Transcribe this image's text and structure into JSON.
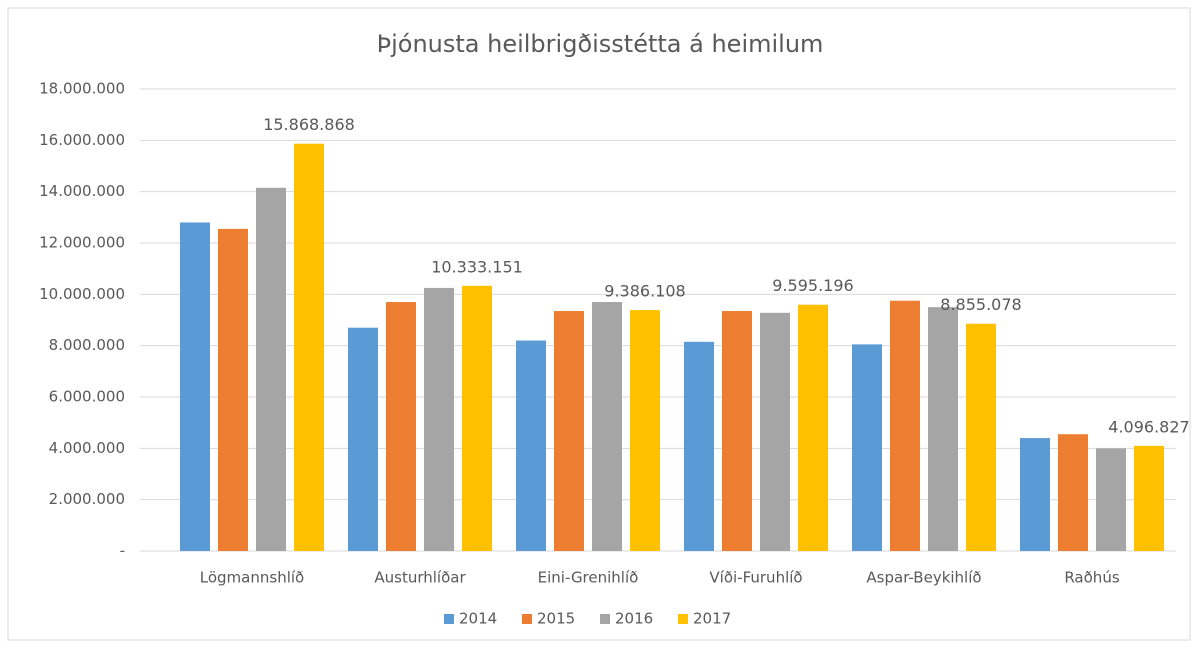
{
  "chart_data": {
    "type": "bar",
    "title": "Þjónusta heilbrigðisstétta á heimilum",
    "categories": [
      "Lögmannshlíð",
      "Austurhlíðar",
      "Eini-Grenihlíð",
      "Víði-Furuhlíð",
      "Aspar-Beykihlíð",
      "Raðhús"
    ],
    "series": [
      {
        "name": "2014",
        "color": "#5b9bd5",
        "values": [
          12800000,
          8700000,
          8200000,
          8150000,
          8050000,
          4400000
        ]
      },
      {
        "name": "2015",
        "color": "#ed7d31",
        "values": [
          12550000,
          9700000,
          9350000,
          9350000,
          9750000,
          4550000
        ]
      },
      {
        "name": "2016",
        "color": "#a5a5a5",
        "values": [
          14150000,
          10250000,
          9700000,
          9280000,
          9500000,
          4000000
        ]
      },
      {
        "name": "2017",
        "color": "#ffc000",
        "values": [
          15868868,
          10333151,
          9386108,
          9595196,
          8855078,
          4096827
        ],
        "value_labels": [
          "15.868.868",
          "10.333.151",
          "9.386.108",
          "9.595.196",
          "8.855.078",
          "4.096.827"
        ]
      }
    ],
    "ylim": [
      0,
      18000000
    ],
    "yticks": [
      {
        "value": 0,
        "label": "-"
      },
      {
        "value": 2000000,
        "label": "2.000.000"
      },
      {
        "value": 4000000,
        "label": "4.000.000"
      },
      {
        "value": 6000000,
        "label": "6.000.000"
      },
      {
        "value": 8000000,
        "label": "8.000.000"
      },
      {
        "value": 10000000,
        "label": "10.000.000"
      },
      {
        "value": 12000000,
        "label": "12.000.000"
      },
      {
        "value": 14000000,
        "label": "14.000.000"
      },
      {
        "value": 16000000,
        "label": "16.000.000"
      },
      {
        "value": 18000000,
        "label": "18.000.000"
      }
    ],
    "grid": true,
    "legend": "bottom"
  }
}
